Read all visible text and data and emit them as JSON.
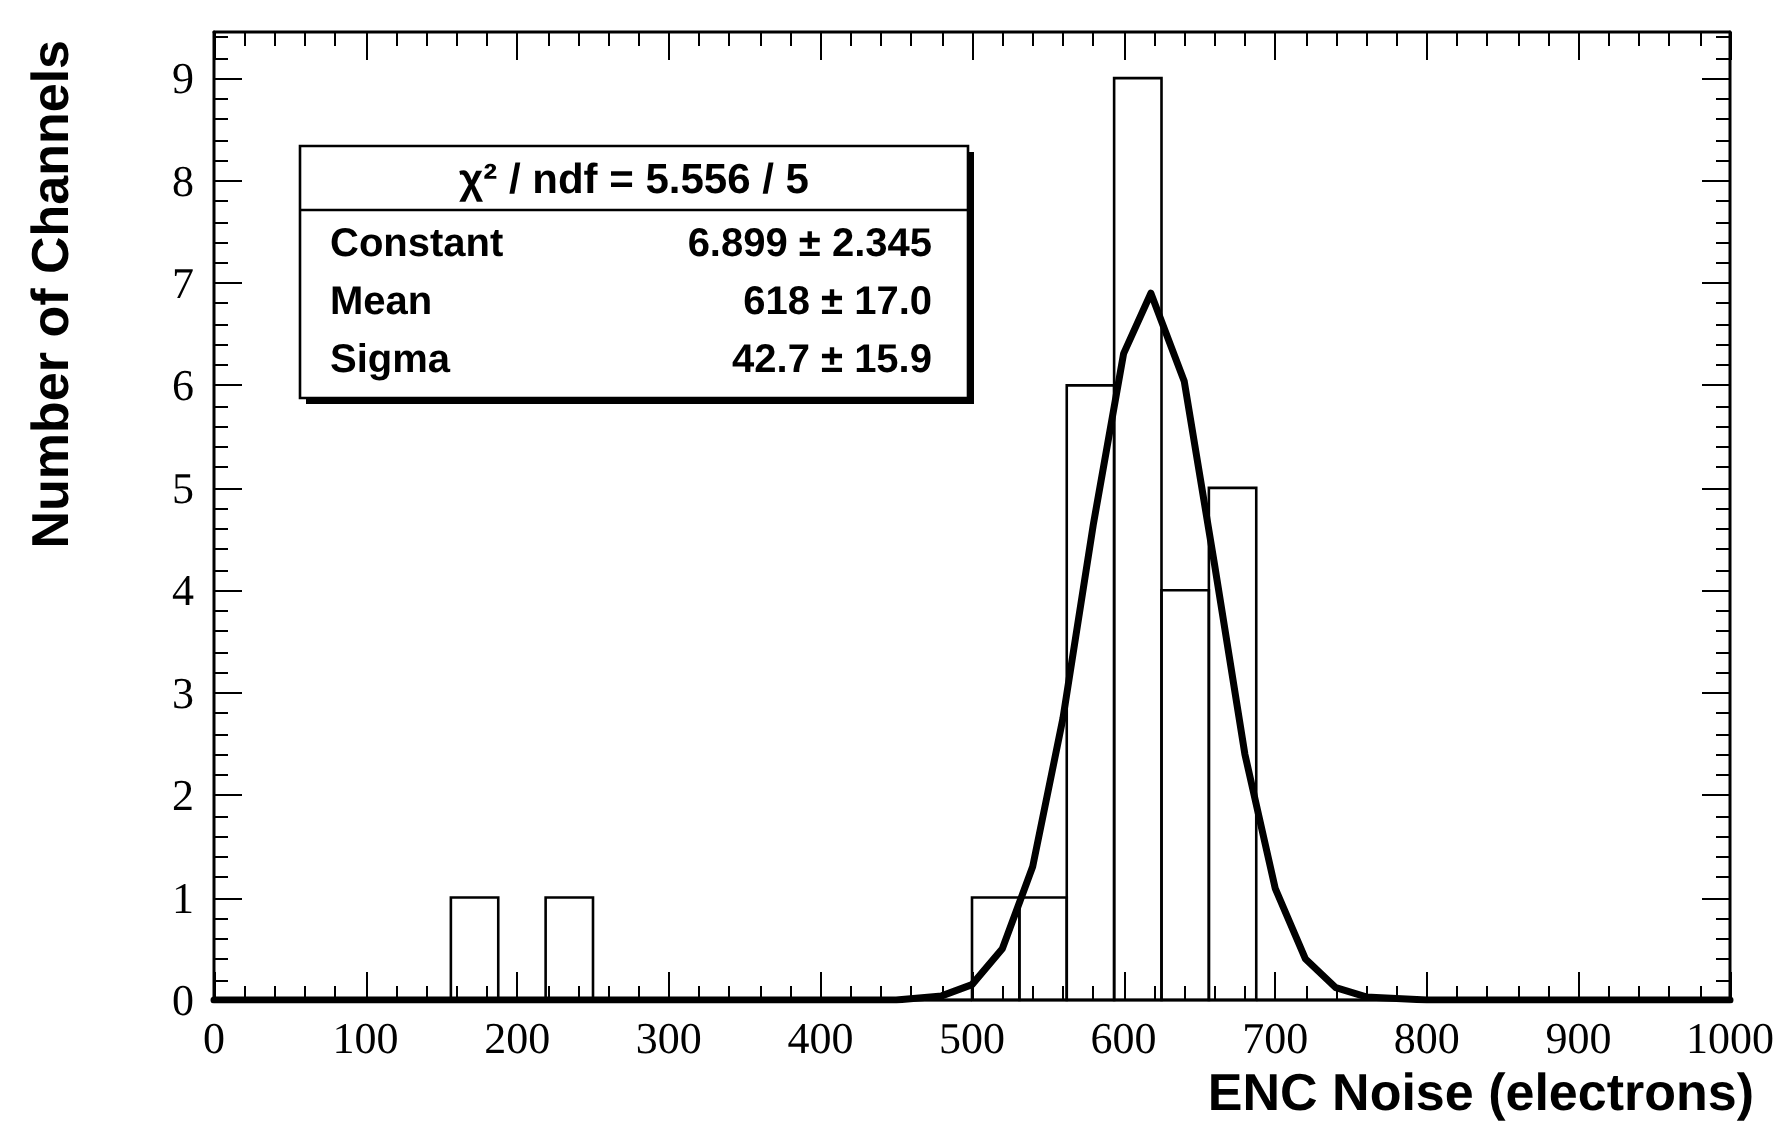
{
  "chart_data": {
    "type": "histogram",
    "xlabel": "ENC Noise (electrons)",
    "ylabel": "Number of Channels",
    "bins": [
      0,
      31.25,
      62.5,
      93.75,
      125,
      156.25,
      187.5,
      218.75,
      250,
      281.25,
      312.5,
      343.75,
      375,
      406.25,
      437.5,
      468.75,
      500,
      531.25,
      562.5,
      593.75,
      625,
      656.25,
      687.5,
      718.75,
      750,
      781.25,
      812.5,
      843.75,
      875,
      906.25,
      937.5,
      968.75,
      1000
    ],
    "series": [
      {
        "color": "#000000",
        "values": [
          0,
          0,
          0,
          0,
          0,
          1,
          0,
          1,
          0,
          0,
          0,
          0,
          0,
          0,
          0,
          0,
          1,
          1,
          6,
          9,
          4,
          5,
          0,
          0,
          0,
          0,
          0,
          0,
          0,
          0,
          0,
          0
        ]
      },
      {
        "type": "line",
        "color": "#000000",
        "x": [
          0,
          400,
          450,
          480,
          500,
          520,
          540,
          560,
          580,
          600,
          618,
          640,
          660,
          680,
          700,
          720,
          740,
          760,
          800,
          1000
        ],
        "values": [
          0,
          0,
          0,
          0.04,
          0.15,
          0.5,
          1.3,
          2.75,
          4.64,
          6.31,
          6.9,
          6.04,
          4.25,
          2.4,
          1.09,
          0.4,
          0.12,
          0.03,
          0,
          0
        ]
      }
    ],
    "annotations": [
      "χ² / ndf = 5.556 / 5",
      "Constant 6.899 ± 2.345",
      "Mean 618 ± 17.0",
      "Sigma 42.7 ± 15.9"
    ],
    "xlim": [
      0,
      1000
    ],
    "ylim": [
      0,
      9.45
    ],
    "xticks": [
      0,
      100,
      200,
      300,
      400,
      500,
      600,
      700,
      800,
      900,
      1000
    ],
    "yticks": [
      0,
      1,
      2,
      3,
      4,
      5,
      6,
      7,
      8,
      9
    ],
    "grid": false,
    "marker": "none",
    "line_style": "solid"
  }
}
